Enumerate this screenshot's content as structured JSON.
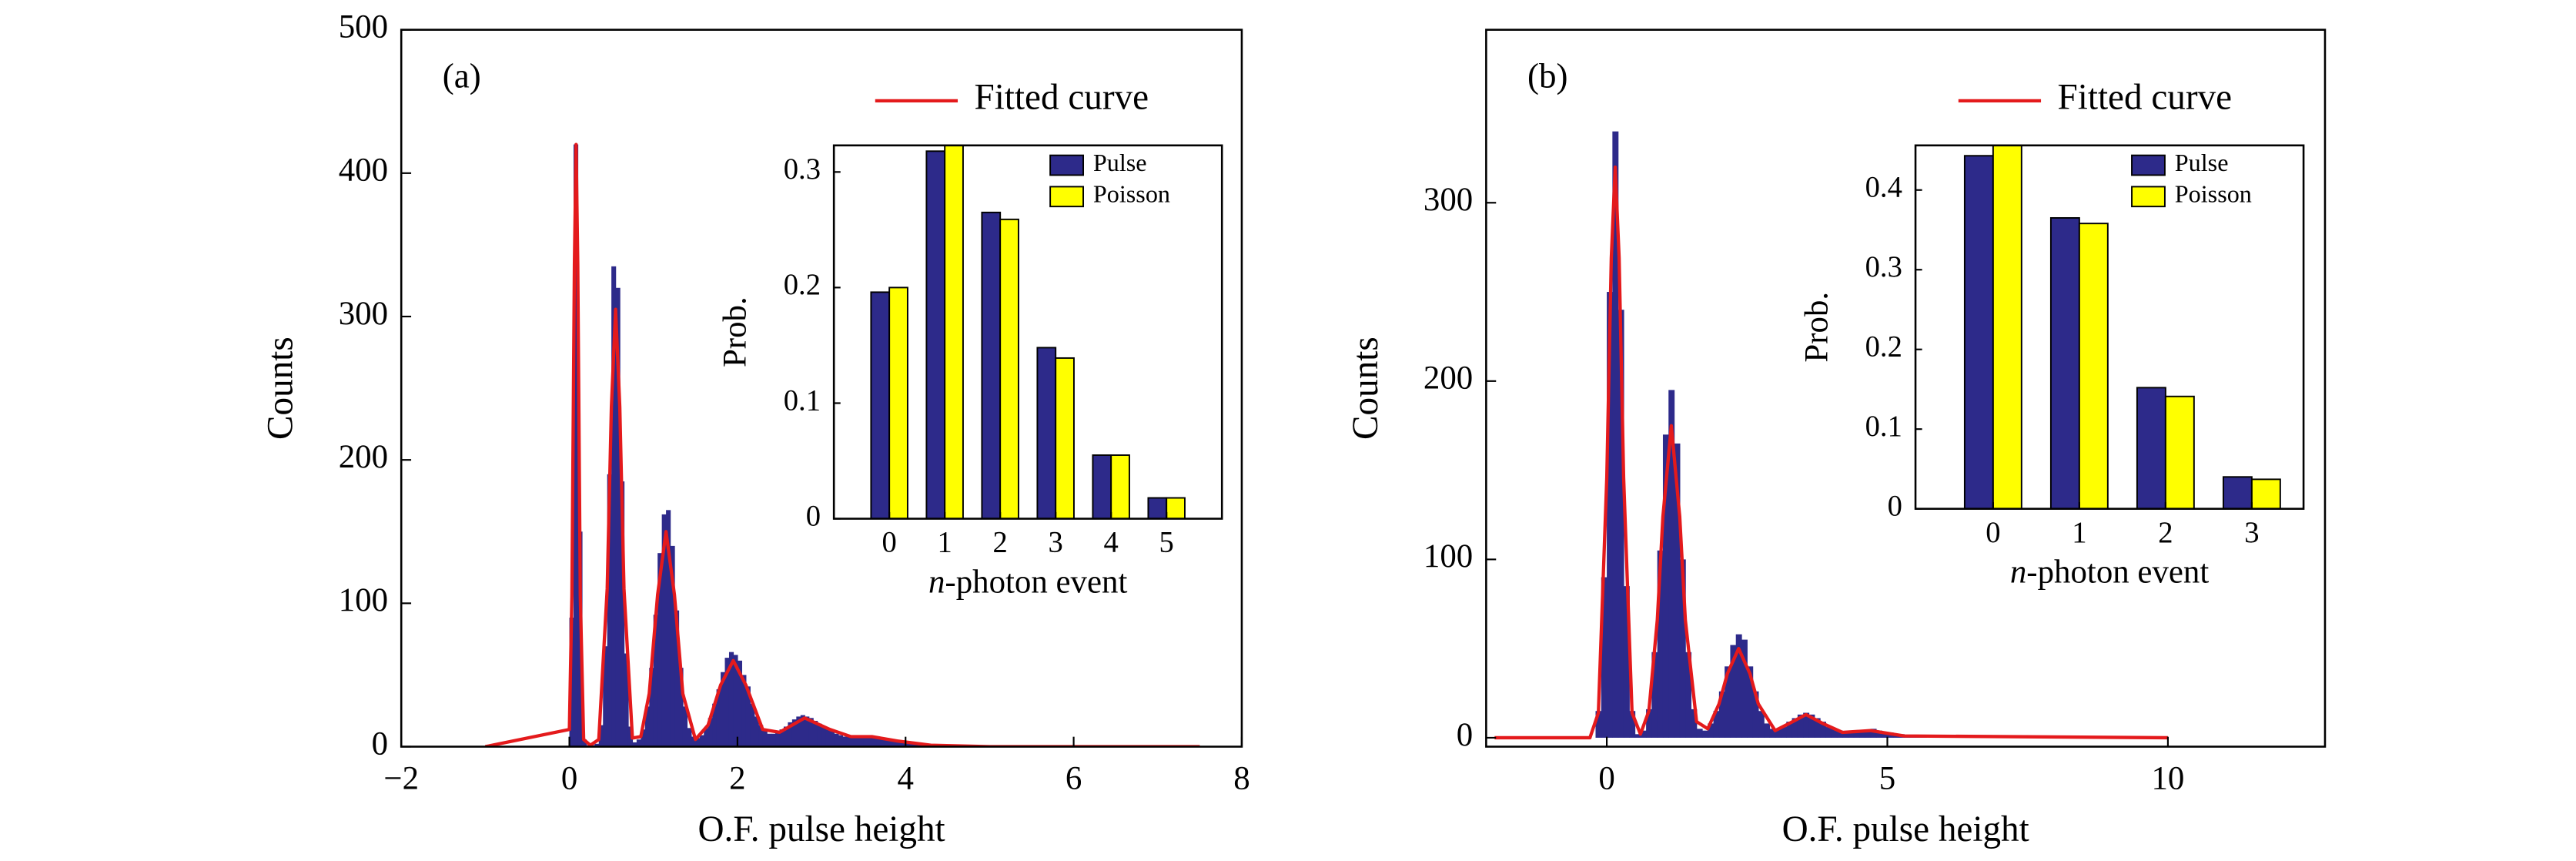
{
  "chart_data": [
    {
      "type": "histogram",
      "annotation": "(a)",
      "xlabel": "O.F. pulse height",
      "ylabel": "Counts",
      "xlim": [
        -2,
        8
      ],
      "ylim": [
        0,
        500
      ],
      "xticks": [
        {
          "value": -2,
          "label": "−2"
        },
        0,
        2,
        4,
        6,
        8
      ],
      "yticks": [
        0,
        100,
        200,
        300,
        400,
        500
      ],
      "color": "#2d2a8a",
      "bins": [
        0,
        0.05,
        0.1,
        0.15,
        0.2,
        0.25,
        0.3,
        0.35,
        0.4,
        0.45,
        0.5,
        0.55,
        0.6,
        0.65,
        0.7,
        0.75,
        0.8,
        0.85,
        0.9,
        0.95,
        1,
        1.05,
        1.1,
        1.15,
        1.2,
        1.25,
        1.3,
        1.35,
        1.4,
        1.45,
        1.5,
        1.55,
        1.6,
        1.65,
        1.7,
        1.75,
        1.8,
        1.85,
        1.9,
        1.95,
        2,
        2.05,
        2.1,
        2.15,
        2.2,
        2.25,
        2.3,
        2.35,
        2.4,
        2.45,
        2.5,
        2.55,
        2.6,
        2.65,
        2.7,
        2.75,
        2.8,
        2.85,
        2.9,
        2.95,
        3,
        3.05,
        3.1,
        3.15,
        3.2,
        3.25,
        3.3,
        3.35,
        3.4,
        3.45,
        3.5,
        3.55,
        3.6,
        3.65,
        3.7,
        3.75,
        3.8,
        3.85,
        3.9,
        3.95,
        4,
        4.05,
        4.1,
        4.15,
        4.2,
        4.25,
        4.3,
        4.35,
        4.4,
        4.45,
        4.5
      ],
      "counts": [
        90,
        420,
        150,
        5,
        1,
        1,
        2,
        15,
        70,
        190,
        335,
        320,
        185,
        65,
        14,
        3,
        5,
        12,
        28,
        55,
        92,
        135,
        162,
        165,
        140,
        95,
        55,
        28,
        13,
        7,
        6,
        8,
        13,
        20,
        30,
        40,
        52,
        62,
        66,
        64,
        60,
        50,
        42,
        30,
        21,
        15,
        11,
        9,
        9,
        10,
        12,
        14,
        17,
        19,
        21,
        22,
        21,
        20,
        18,
        16,
        14,
        12,
        11,
        9,
        8,
        7,
        7,
        7,
        7,
        7,
        7,
        8,
        7,
        7,
        6,
        6,
        5,
        5,
        4,
        3,
        3,
        2,
        2,
        1,
        1,
        2,
        1,
        1,
        0,
        1
      ],
      "series": [
        {
          "name": "Fitted curve",
          "color": "#e41a1c",
          "x": [
            -1,
            0,
            0.03,
            0.06,
            0.08,
            0.1,
            0.13,
            0.17,
            0.25,
            0.35,
            0.45,
            0.5,
            0.55,
            0.6,
            0.65,
            0.75,
            0.85,
            0.95,
            1.05,
            1.15,
            1.25,
            1.35,
            1.5,
            1.65,
            1.8,
            1.95,
            2.1,
            2.3,
            2.5,
            2.8,
            3.1,
            3.35,
            3.6,
            3.9,
            4.3,
            5,
            7.5
          ],
          "values": [
            0,
            12,
            105,
            336,
            420,
            336,
            105,
            5,
            1,
            5,
            110,
            237,
            305,
            237,
            110,
            6,
            7,
            37,
            106,
            150,
            106,
            37,
            5,
            15,
            43,
            60,
            43,
            12,
            10,
            20,
            12,
            7,
            7,
            4,
            1,
            0,
            0
          ]
        }
      ]
    },
    {
      "type": "bar",
      "xlabel": "n-photon event",
      "ylabel": "Prob.",
      "x": [
        0,
        1,
        2,
        3,
        4,
        5
      ],
      "xlim": [
        -1,
        6
      ],
      "ylim": [
        0,
        0.323
      ],
      "xticks": [
        0,
        1,
        2,
        3,
        4,
        5
      ],
      "yticks": [
        0,
        0.1,
        0.2,
        0.3
      ],
      "series": [
        {
          "name": "Pulse",
          "color": "#2d2a8a",
          "values": [
            0.196,
            0.318,
            0.265,
            0.148,
            0.055,
            0.018
          ]
        },
        {
          "name": "Poisson",
          "color": "#ffff00",
          "values": [
            0.2,
            0.323,
            0.259,
            0.139,
            0.055,
            0.018
          ]
        }
      ]
    },
    {
      "type": "histogram",
      "annotation": "(b)",
      "xlabel": "O.F. pulse height",
      "ylabel": "Counts",
      "xlim": [
        -2.15,
        12.8
      ],
      "ylim": [
        -5,
        397
      ],
      "xticks": [
        0,
        5,
        10
      ],
      "yticks": [
        0,
        100,
        200,
        300
      ],
      "color": "#2d2a8a",
      "bins": [
        -0.2,
        -0.1,
        0,
        0.1,
        0.2,
        0.3,
        0.4,
        0.5,
        0.6,
        0.7,
        0.8,
        0.9,
        1,
        1.1,
        1.2,
        1.3,
        1.4,
        1.5,
        1.6,
        1.7,
        1.8,
        1.9,
        2,
        2.1,
        2.2,
        2.3,
        2.4,
        2.5,
        2.6,
        2.7,
        2.8,
        2.9,
        3,
        3.1,
        3.2,
        3.3,
        3.4,
        3.5,
        3.6,
        3.7,
        3.8,
        3.9,
        4,
        4.1,
        4.2,
        4.3,
        4.4,
        4.5,
        4.6,
        4.7,
        4.8,
        4.9,
        5,
        5.1,
        5.2,
        5.3,
        5.4,
        5.5,
        5.6,
        5.7,
        5.8,
        5.9,
        6
      ],
      "counts": [
        15,
        90,
        250,
        340,
        240,
        85,
        15,
        2,
        4,
        16,
        48,
        105,
        170,
        195,
        165,
        100,
        48,
        16,
        5,
        4,
        8,
        15,
        26,
        40,
        52,
        58,
        55,
        40,
        26,
        15,
        8,
        5,
        5,
        6,
        9,
        11,
        13,
        14,
        13,
        11,
        9,
        6,
        5,
        4,
        3,
        3,
        4,
        4,
        4,
        5,
        4,
        3,
        3,
        2,
        2,
        1,
        1,
        1,
        1,
        0,
        1,
        1
      ],
      "series": [
        {
          "name": "Fitted curve",
          "color": "#e41a1c",
          "x": [
            -2,
            -0.3,
            -0.15,
            0,
            0.08,
            0.15,
            0.22,
            0.3,
            0.45,
            0.6,
            0.75,
            0.9,
            1,
            1.15,
            1.3,
            1.4,
            1.6,
            1.8,
            2,
            2.15,
            2.35,
            2.55,
            2.7,
            3,
            3.25,
            3.55,
            3.85,
            4.2,
            4.7,
            5.3,
            10
          ],
          "values": [
            0,
            0,
            14,
            146,
            269,
            320,
            269,
            146,
            14,
            2,
            15,
            66,
            124,
            175,
            124,
            66,
            9,
            5,
            19,
            36,
            50,
            36,
            19,
            4,
            8,
            13,
            8,
            3,
            4,
            1,
            0
          ]
        }
      ]
    },
    {
      "type": "bar",
      "xlabel": "n-photon event",
      "ylabel": "Prob.",
      "x": [
        0,
        1,
        2,
        3
      ],
      "xlim": [
        -0.9,
        3.6
      ],
      "ylim": [
        0,
        0.456
      ],
      "xticks": [
        0,
        1,
        2,
        3
      ],
      "yticks": [
        0,
        0.1,
        0.2,
        0.3,
        0.4
      ],
      "series": [
        {
          "name": "Pulse",
          "color": "#2d2a8a",
          "values": [
            0.443,
            0.365,
            0.152,
            0.04
          ]
        },
        {
          "name": "Poisson",
          "color": "#ffff00",
          "values": [
            0.456,
            0.358,
            0.141,
            0.037
          ]
        }
      ]
    }
  ]
}
